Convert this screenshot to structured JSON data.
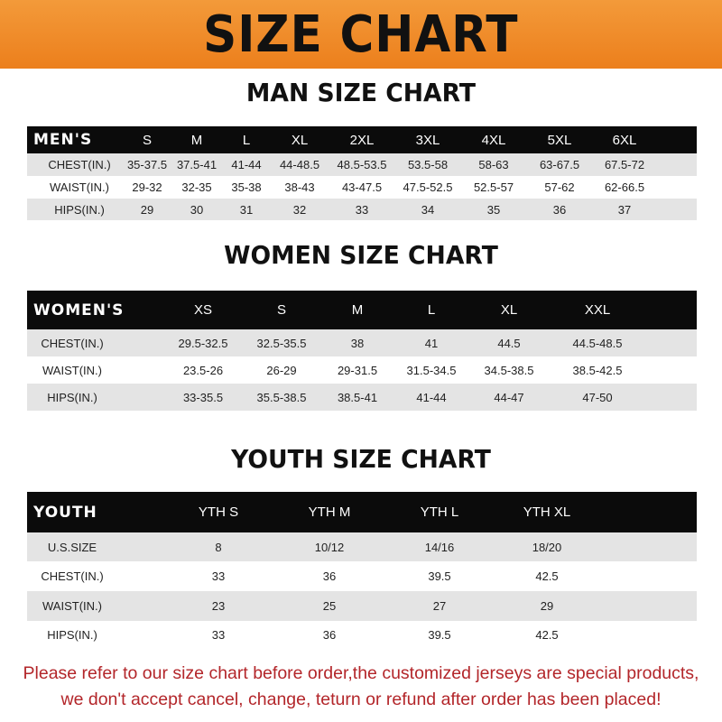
{
  "title": "SIZE CHART",
  "colors": {
    "banner": "#ee8a28",
    "header_row": "#0b0b0b",
    "footer_text": "#b3262a"
  },
  "men": {
    "title": "MAN SIZE CHART",
    "header": [
      "MEN'S",
      "S",
      "M",
      "L",
      "XL",
      "2XL",
      "3XL",
      "4XL",
      "5XL",
      "6XL"
    ],
    "rows": [
      [
        "CHEST(IN.)",
        "35-37.5",
        "37.5-41",
        "41-44",
        "44-48.5",
        "48.5-53.5",
        "53.5-58",
        "58-63",
        "63-67.5",
        "67.5-72"
      ],
      [
        "WAIST(IN.)",
        "29-32",
        "32-35",
        "35-38",
        "38-43",
        "43-47.5",
        "47.5-52.5",
        "52.5-57",
        "57-62",
        "62-66.5"
      ],
      [
        "HIPS(IN.)",
        "29",
        "30",
        "31",
        "32",
        "33",
        "34",
        "35",
        "36",
        "37"
      ]
    ]
  },
  "women": {
    "title": "WOMEN SIZE CHART",
    "header": [
      "WOMEN'S",
      "XS",
      "S",
      "M",
      "L",
      "XL",
      "XXL"
    ],
    "rows": [
      [
        "CHEST(IN.)",
        "29.5-32.5",
        "32.5-35.5",
        "38",
        "41",
        "44.5",
        "44.5-48.5"
      ],
      [
        "WAIST(IN.)",
        "23.5-26",
        "26-29",
        "29-31.5",
        "31.5-34.5",
        "34.5-38.5",
        "38.5-42.5"
      ],
      [
        "HIPS(IN.)",
        "33-35.5",
        "35.5-38.5",
        "38.5-41",
        "41-44",
        "44-47",
        "47-50"
      ]
    ]
  },
  "youth": {
    "title": "YOUTH SIZE CHART",
    "header": [
      "YOUTH",
      "YTH S",
      "YTH M",
      "YTH L",
      "YTH XL"
    ],
    "rows": [
      [
        "U.S.SIZE",
        "8",
        "10/12",
        "14/16",
        "18/20"
      ],
      [
        "CHEST(IN.)",
        "33",
        "36",
        "39.5",
        "42.5"
      ],
      [
        "WAIST(IN.)",
        "23",
        "25",
        "27",
        "29"
      ],
      [
        "HIPS(IN.)",
        "33",
        "36",
        "39.5",
        "42.5"
      ]
    ]
  },
  "footer": {
    "line1": "Please refer to our size chart before order,the customized jerseys are special products,",
    "line2": "we don't accept cancel, change, teturn or refund after order has been placed!"
  }
}
